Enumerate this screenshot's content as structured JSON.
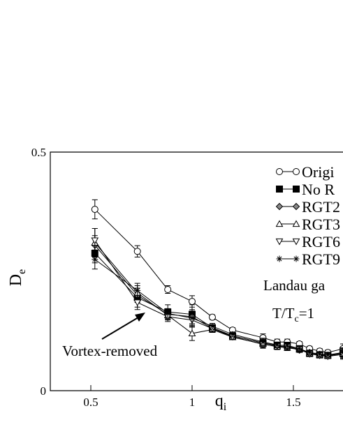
{
  "chart_data": {
    "type": "line",
    "x_label": "q",
    "x_label_sub": "i",
    "y_label": "D",
    "y_label_sub": "e",
    "xlim": [
      0.3,
      1.745
    ],
    "ylim": [
      0,
      0.5
    ],
    "xticks": [
      0.5,
      1,
      1.5
    ],
    "yticks": [
      0,
      0.5
    ],
    "x": [
      0.52,
      0.73,
      0.88,
      1.0,
      1.1,
      1.2,
      1.35,
      1.42,
      1.47,
      1.53,
      1.58,
      1.63,
      1.67,
      1.745
    ],
    "series": [
      {
        "name": "Origi",
        "marker": "circle",
        "color": "#000000",
        "values": [
          0.38,
          0.292,
          0.212,
          0.187,
          0.154,
          0.127,
          0.111,
          0.102,
          0.102,
          0.098,
          0.088,
          0.083,
          0.08,
          0.088
        ],
        "errors": [
          0.02,
          0.012,
          0.008,
          0.012,
          0.005,
          0.005,
          0.008,
          0.006,
          0.006,
          0.005,
          0.005,
          0.005,
          0.005,
          0.01
        ]
      },
      {
        "name": "No R",
        "marker": "square",
        "color": "#000000",
        "values": [
          0.288,
          0.195,
          0.165,
          0.16,
          0.132,
          0.115,
          0.1,
          0.095,
          0.095,
          0.088,
          0.078,
          0.075,
          0.074,
          0.078
        ],
        "errors": [
          0.02,
          0.02,
          0.015,
          0.02,
          0.006,
          0.005,
          0.008,
          0.006,
          0.006,
          0.005,
          0.005,
          0.005,
          0.005,
          0.01
        ]
      },
      {
        "name": "RGT2",
        "marker": "diamond",
        "color": "#000000",
        "values": [
          0.305,
          0.2,
          0.16,
          0.155,
          0.13,
          0.115,
          0.1,
          0.094,
          0.092,
          0.085,
          0.08,
          0.076,
          0.074,
          0.08
        ],
        "errors": [
          0.02,
          0.015,
          0.01,
          0.015,
          0.006,
          0.005,
          0.008,
          0.006,
          0.006,
          0.005,
          0.005,
          0.005,
          0.005,
          0.01
        ]
      },
      {
        "name": "RGT3",
        "marker": "triangle-up",
        "color": "#000000",
        "values": [
          0.31,
          0.205,
          0.158,
          0.12,
          0.128,
          0.112,
          0.098,
          0.092,
          0.09,
          0.086,
          0.078,
          0.075,
          0.073,
          0.078
        ],
        "errors": [
          0.03,
          0.015,
          0.01,
          0.015,
          0.006,
          0.005,
          0.008,
          0.006,
          0.006,
          0.005,
          0.005,
          0.005,
          0.005,
          0.01
        ]
      },
      {
        "name": "RGT6",
        "marker": "triangle-down",
        "color": "#000000",
        "values": [
          0.315,
          0.185,
          0.155,
          0.148,
          0.13,
          0.113,
          0.097,
          0.093,
          0.092,
          0.087,
          0.077,
          0.074,
          0.072,
          0.076
        ],
        "errors": [
          0.025,
          0.015,
          0.01,
          0.015,
          0.006,
          0.005,
          0.008,
          0.006,
          0.006,
          0.005,
          0.005,
          0.005,
          0.005,
          0.01
        ]
      },
      {
        "name": "RGT9",
        "marker": "star",
        "color": "#000000",
        "values": [
          0.275,
          0.21,
          0.162,
          0.152,
          0.135,
          0.118,
          0.102,
          0.096,
          0.094,
          0.088,
          0.08,
          0.077,
          0.075,
          0.08
        ],
        "errors": [
          0.02,
          0.015,
          0.01,
          0.015,
          0.006,
          0.005,
          0.008,
          0.006,
          0.006,
          0.005,
          0.005,
          0.005,
          0.005,
          0.01
        ]
      }
    ],
    "annotations": {
      "gauge": "Landau ga",
      "temp": "T/T",
      "temp_sub": "c",
      "temp_rest": "=1",
      "arrow_text": "Vortex-removed"
    }
  }
}
